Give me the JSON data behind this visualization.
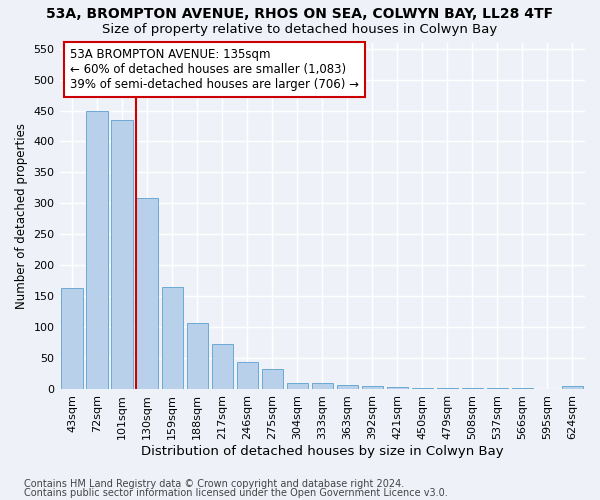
{
  "title1": "53A, BROMPTON AVENUE, RHOS ON SEA, COLWYN BAY, LL28 4TF",
  "title2": "Size of property relative to detached houses in Colwyn Bay",
  "xlabel": "Distribution of detached houses by size in Colwyn Bay",
  "ylabel": "Number of detached properties",
  "categories": [
    "43sqm",
    "72sqm",
    "101sqm",
    "130sqm",
    "159sqm",
    "188sqm",
    "217sqm",
    "246sqm",
    "275sqm",
    "304sqm",
    "333sqm",
    "363sqm",
    "392sqm",
    "421sqm",
    "450sqm",
    "479sqm",
    "508sqm",
    "537sqm",
    "566sqm",
    "595sqm",
    "624sqm"
  ],
  "values": [
    163,
    450,
    435,
    308,
    165,
    107,
    73,
    44,
    33,
    10,
    10,
    7,
    5,
    3,
    2,
    1,
    1,
    1,
    1,
    0,
    4
  ],
  "bar_color": "#b8d0ea",
  "bar_edge_color": "#6aaad4",
  "vline_color": "#cc0000",
  "annotation_text": "53A BROMPTON AVENUE: 135sqm\n← 60% of detached houses are smaller (1,083)\n39% of semi-detached houses are larger (706) →",
  "annotation_box_color": "#ffffff",
  "annotation_box_edge_color": "#cc0000",
  "ylim": [
    0,
    560
  ],
  "ytick_max": 550,
  "ytick_step": 50,
  "footer1": "Contains HM Land Registry data © Crown copyright and database right 2024.",
  "footer2": "Contains public sector information licensed under the Open Government Licence v3.0.",
  "background_color": "#eef2f8",
  "grid_color": "#ffffff",
  "title1_fontsize": 10,
  "title2_fontsize": 9.5,
  "xlabel_fontsize": 9.5,
  "ylabel_fontsize": 8.5,
  "tick_fontsize": 8,
  "annotation_fontsize": 8.5,
  "footer_fontsize": 7
}
